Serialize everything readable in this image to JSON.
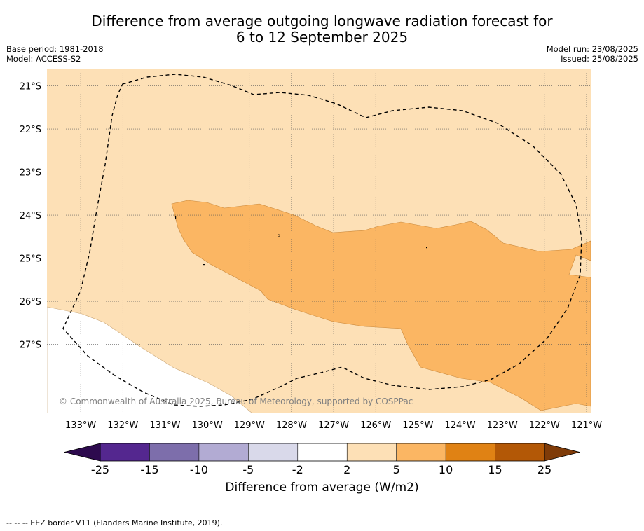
{
  "title": {
    "line1": "Difference from average outgoing longwave radiation forecast for",
    "line2": "6 to 12 September 2025"
  },
  "meta": {
    "base_period": "Base period: 1981-2018",
    "model": "Model: ACCESS-S2",
    "model_run": "Model run: 23/08/2025",
    "issued": "Issued: 25/08/2025"
  },
  "map": {
    "lon_range": [
      -133.8,
      -120.9
    ],
    "lat_range": [
      -28.6,
      -20.6
    ],
    "lat_ticks": [
      {
        "value": -21,
        "label": "21°S"
      },
      {
        "value": -22,
        "label": "22°S"
      },
      {
        "value": -23,
        "label": "23°S"
      },
      {
        "value": -24,
        "label": "24°S"
      },
      {
        "value": -25,
        "label": "25°S"
      },
      {
        "value": -26,
        "label": "26°S"
      },
      {
        "value": -27,
        "label": "27°S"
      }
    ],
    "lon_ticks": [
      {
        "value": -133,
        "label": "133°W"
      },
      {
        "value": -132,
        "label": "132°W"
      },
      {
        "value": -131,
        "label": "131°W"
      },
      {
        "value": -130,
        "label": "130°W"
      },
      {
        "value": -129,
        "label": "129°W"
      },
      {
        "value": -128,
        "label": "128°W"
      },
      {
        "value": -127,
        "label": "127°W"
      },
      {
        "value": -126,
        "label": "126°W"
      },
      {
        "value": -125,
        "label": "125°W"
      },
      {
        "value": -124,
        "label": "124°W"
      },
      {
        "value": -123,
        "label": "123°W"
      },
      {
        "value": -122,
        "label": "122°W"
      },
      {
        "value": -121,
        "label": "121°W"
      }
    ],
    "colors": {
      "band_2_5": "#fde0b6",
      "band_5_10": "#fbb663",
      "band_neutral": "#ffffff"
    },
    "copyright": "© Commonwealth of Australia 2025, Bureau of Meteorology, supported by COSPPac"
  },
  "colorbar": {
    "label": "Difference from average (W/m2)",
    "ticks": [
      "-25",
      "-15",
      "-10",
      "-5",
      "-2",
      "2",
      "5",
      "10",
      "15",
      "25"
    ],
    "colors": [
      "#2d0a4e",
      "#54278f",
      "#7d6eab",
      "#b2abd3",
      "#d9d9ea",
      "#ffffff",
      "#fde0b6",
      "#fbb663",
      "#e08214",
      "#b35806",
      "#7f3b08"
    ]
  },
  "footnote": "--  --  -- EEZ border V11 (Flanders Marine Institute, 2019)."
}
